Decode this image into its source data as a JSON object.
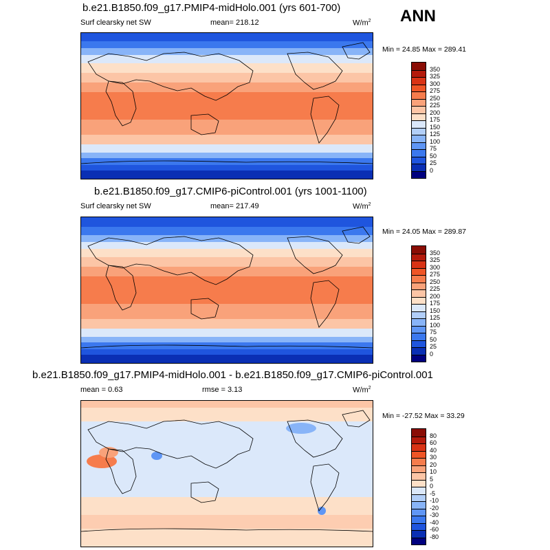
{
  "panel1": {
    "title": "b.e21.B1850.f09_g17.PMIP4-midHolo.001 (yrs 601-700)",
    "left": "Surf clearsky net SW",
    "mean": "mean= 218.12",
    "units": "W/m",
    "units_sup": "2",
    "minmax": "Min =  24.85 Max = 289.41"
  },
  "panel2": {
    "title": "b.e21.B1850.f09_g17.CMIP6-piControl.001 (yrs 1001-1100)",
    "left": "Surf clearsky net SW",
    "mean": "mean= 217.49",
    "units": "W/m",
    "units_sup": "2",
    "minmax": "Min =  24.05 Max = 289.87"
  },
  "panel3": {
    "title": "b.e21.B1850.f09_g17.PMIP4-midHolo.001 - b.e21.B1850.f09_g17.CMIP6-piControl.001",
    "mean": "mean =   0.63",
    "rmse": "rmse =   3.13",
    "units": "W/m",
    "units_sup": "2",
    "minmax": "Min = -27.52 Max =  33.29"
  },
  "season": "ANN",
  "chart_data": [
    {
      "type": "heatmap",
      "title": "b.e21.B1850.f09_g17.PMIP4-midHolo.001 (yrs 601-700)",
      "variable": "Surf clearsky net SW",
      "units": "W/m2",
      "mean": 218.12,
      "min": 24.85,
      "max": 289.41,
      "colorbar_levels": [
        0,
        25,
        50,
        75,
        100,
        125,
        150,
        175,
        200,
        225,
        250,
        275,
        300,
        325,
        350
      ],
      "colorbar_colors": [
        "#00007f",
        "#0a2fb4",
        "#1f55de",
        "#3b78ee",
        "#5f96f5",
        "#88b4f8",
        "#b2cff9",
        "#dbe8fa",
        "#fde0c8",
        "#fcc5a6",
        "#f9a27a",
        "#f67c4c",
        "#ef5526",
        "#d93315",
        "#b41a0b",
        "#8a0d05"
      ]
    },
    {
      "type": "heatmap",
      "title": "b.e21.B1850.f09_g17.CMIP6-piControl.001 (yrs 1001-1100)",
      "variable": "Surf clearsky net SW",
      "units": "W/m2",
      "mean": 217.49,
      "min": 24.05,
      "max": 289.87,
      "colorbar_levels": [
        0,
        25,
        50,
        75,
        100,
        125,
        150,
        175,
        200,
        225,
        250,
        275,
        300,
        325,
        350
      ],
      "colorbar_colors": [
        "#00007f",
        "#0a2fb4",
        "#1f55de",
        "#3b78ee",
        "#5f96f5",
        "#88b4f8",
        "#b2cff9",
        "#dbe8fa",
        "#fde0c8",
        "#fcc5a6",
        "#f9a27a",
        "#f67c4c",
        "#ef5526",
        "#d93315",
        "#b41a0b",
        "#8a0d05"
      ]
    },
    {
      "type": "heatmap",
      "title": "b.e21.B1850.f09_g17.PMIP4-midHolo.001 - b.e21.B1850.f09_g17.CMIP6-piControl.001",
      "units": "W/m2",
      "mean": 0.63,
      "rmse": 3.13,
      "min": -27.52,
      "max": 33.29,
      "colorbar_levels": [
        -80,
        -60,
        -40,
        -30,
        -20,
        -10,
        -5,
        0,
        5,
        10,
        20,
        30,
        40,
        60,
        80
      ],
      "colorbar_colors": [
        "#00007f",
        "#0a2fb4",
        "#1f55de",
        "#3b78ee",
        "#5f96f5",
        "#88b4f8",
        "#b2cff9",
        "#dbe8fa",
        "#fde0c8",
        "#fcc5a6",
        "#f9a27a",
        "#f67c4c",
        "#ef5526",
        "#d93315",
        "#b41a0b",
        "#8a0d05"
      ]
    }
  ]
}
